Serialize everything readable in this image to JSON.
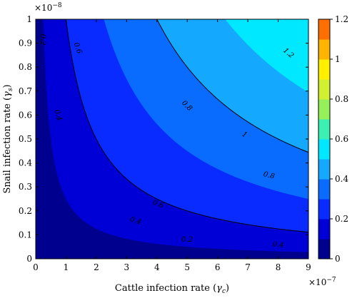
{
  "chart_data": {
    "type": "contour",
    "function": "z = 0.2 * sqrt(x * y)",
    "x": {
      "label_prefix": "Cattle infection rate (",
      "label_symbol": "γ",
      "label_sub": "c",
      "label_suffix": ")",
      "lim": [
        0,
        9
      ],
      "ticks": [
        0,
        1,
        2,
        3,
        4,
        5,
        6,
        7,
        8,
        9
      ],
      "exponent_base": "×10",
      "exponent_power": "−7"
    },
    "y": {
      "label_prefix": "Snail infection rate (",
      "label_symbol": "γ",
      "label_sub": "s",
      "label_suffix": ")",
      "lim": [
        0,
        1
      ],
      "ticks": [
        "0",
        "0.1",
        "0.2",
        "0.3",
        "0.4",
        "0.5",
        "0.6",
        "0.7",
        "0.8",
        "0.9",
        "1"
      ],
      "tick_values": [
        0,
        0.1,
        0.2,
        0.3,
        0.4,
        0.5,
        0.6,
        0.7,
        0.8,
        0.9,
        1
      ],
      "exponent_base": "×10",
      "exponent_power": "−8"
    },
    "levels": [
      0,
      0.1,
      0.2,
      0.3,
      0.4,
      0.5,
      0.6,
      0.7,
      0.8,
      0.9,
      1.0,
      1.1,
      1.2
    ],
    "level_colors": [
      "#00008f",
      "#0000d6",
      "#0a2bff",
      "#0a6cff",
      "#14a9ff",
      "#00e8ff",
      "#3cf0b4",
      "#96f05a",
      "#d2f032",
      "#fff000",
      "#ffb400",
      "#ff6e00"
    ],
    "contour_lines": [
      0.2,
      0.4,
      0.6,
      0.8,
      1.0,
      1.2
    ],
    "contour_labels": [
      {
        "text": "0.2",
        "x": 0.25,
        "y": 0.915,
        "rot": 90
      },
      {
        "text": "0.2",
        "x": 5.0,
        "y": 0.082,
        "rot": 0
      },
      {
        "text": "0.4",
        "x": 0.75,
        "y": 0.6,
        "rot": 75
      },
      {
        "text": "0.4",
        "x": 3.3,
        "y": 0.16,
        "rot": 18
      },
      {
        "text": "0.4",
        "x": 8.0,
        "y": 0.06,
        "rot": 5
      },
      {
        "text": "0.6",
        "x": 1.4,
        "y": 0.88,
        "rot": 70
      },
      {
        "text": "0.6",
        "x": 4.05,
        "y": 0.23,
        "rot": 20
      },
      {
        "text": "0.8",
        "x": 5.0,
        "y": 0.64,
        "rot": 45
      },
      {
        "text": "0.8",
        "x": 7.7,
        "y": 0.35,
        "rot": 15
      },
      {
        "text": "1",
        "x": 6.9,
        "y": 0.52,
        "rot": 30
      },
      {
        "text": "1.2",
        "x": 8.35,
        "y": 0.86,
        "rot": 40
      }
    ],
    "colorbar": {
      "ticks": [
        "0",
        "0.2",
        "0.4",
        "0.6",
        "0.8",
        "1",
        "1.2"
      ],
      "tick_values": [
        0,
        0.2,
        0.4,
        0.6,
        0.8,
        1.0,
        1.2
      ],
      "lim": [
        0,
        1.2
      ]
    }
  }
}
